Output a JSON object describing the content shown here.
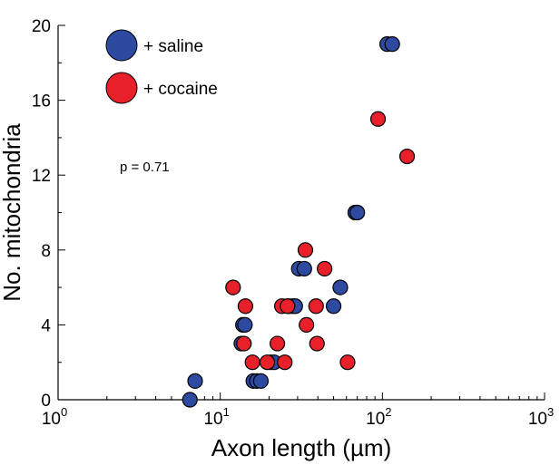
{
  "chart_data": {
    "type": "scatter",
    "xlabel": "Axon length (µm)",
    "ylabel": "No. mitochondria",
    "xscale": "log",
    "xlim": [
      1,
      1000
    ],
    "ylim": [
      0,
      20
    ],
    "x_ticks": [
      {
        "value": 1,
        "base": "10",
        "exp": "0"
      },
      {
        "value": 10,
        "base": "10",
        "exp": "1"
      },
      {
        "value": 100,
        "base": "10",
        "exp": "2"
      },
      {
        "value": 1000,
        "base": "10",
        "exp": "3"
      }
    ],
    "y_ticks": [
      0,
      4,
      8,
      12,
      16,
      20
    ],
    "grid": false,
    "legend_position": "top-left",
    "annotation": "p = 0.71",
    "series": [
      {
        "name": "+ saline",
        "color": "#2e4aa0",
        "points": [
          {
            "x": 6.5,
            "y": 0
          },
          {
            "x": 7.0,
            "y": 1
          },
          {
            "x": 13.5,
            "y": 3
          },
          {
            "x": 13.8,
            "y": 4
          },
          {
            "x": 14.2,
            "y": 4
          },
          {
            "x": 16.0,
            "y": 1
          },
          {
            "x": 16.8,
            "y": 1
          },
          {
            "x": 17.8,
            "y": 1
          },
          {
            "x": 20.5,
            "y": 2
          },
          {
            "x": 21.5,
            "y": 2
          },
          {
            "x": 26.5,
            "y": 5
          },
          {
            "x": 28.0,
            "y": 5
          },
          {
            "x": 29.0,
            "y": 5
          },
          {
            "x": 30.5,
            "y": 7
          },
          {
            "x": 33.0,
            "y": 7
          },
          {
            "x": 50.0,
            "y": 5
          },
          {
            "x": 55.0,
            "y": 6
          },
          {
            "x": 68.0,
            "y": 10
          },
          {
            "x": 70.0,
            "y": 10
          },
          {
            "x": 107.0,
            "y": 19
          },
          {
            "x": 115.0,
            "y": 19
          }
        ]
      },
      {
        "name": "+ cocaine",
        "color": "#e8202a",
        "points": [
          {
            "x": 12.0,
            "y": 6
          },
          {
            "x": 14.0,
            "y": 3
          },
          {
            "x": 14.3,
            "y": 5
          },
          {
            "x": 15.8,
            "y": 2
          },
          {
            "x": 19.5,
            "y": 2
          },
          {
            "x": 22.5,
            "y": 3
          },
          {
            "x": 24.0,
            "y": 5
          },
          {
            "x": 25.0,
            "y": 2
          },
          {
            "x": 26.0,
            "y": 5
          },
          {
            "x": 33.5,
            "y": 8
          },
          {
            "x": 34.0,
            "y": 4
          },
          {
            "x": 39.0,
            "y": 5
          },
          {
            "x": 39.5,
            "y": 3
          },
          {
            "x": 44.0,
            "y": 7
          },
          {
            "x": 61.0,
            "y": 2
          },
          {
            "x": 94.0,
            "y": 15
          },
          {
            "x": 142.0,
            "y": 13
          }
        ]
      }
    ]
  }
}
